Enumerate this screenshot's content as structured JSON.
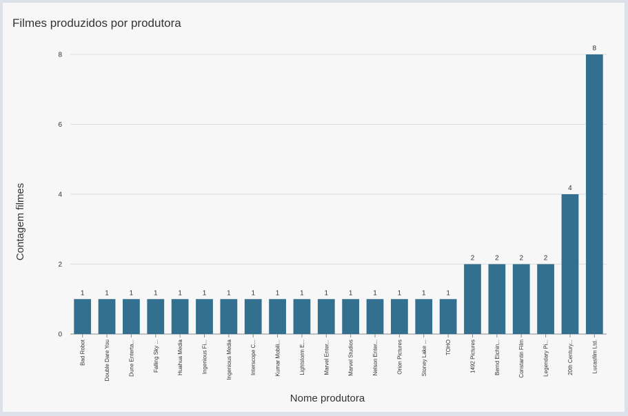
{
  "chart_data": {
    "type": "bar",
    "title": "Filmes produzidos por produtora",
    "xlabel": "Nome produtora",
    "ylabel": "Contagem filmes",
    "ylim": [
      0,
      8
    ],
    "yticks": [
      "0",
      "2",
      "4",
      "6",
      "8"
    ],
    "grid": true,
    "legend": "none",
    "bar_color": "#33708f",
    "categories": [
      "Bad Robot",
      "Double Dare You",
      "Dune Enterta...",
      "Falling Sky ...",
      "Huahua Media",
      "Ingenious Fi...",
      "Ingenious Media",
      "Interscope C...",
      "Kumar Mobili...",
      "Lightstorm E...",
      "Marvel Enter...",
      "Marvel Studios",
      "Nelson Enter...",
      "Orion Pictures",
      "Stoney Lake ...",
      "TOHO",
      "1492 Pictures",
      "Bernd Eichin...",
      "Constantin Film",
      "Legendary Pi...",
      "20th Century...",
      "Lucasfilm Ltd."
    ],
    "values": [
      1,
      1,
      1,
      1,
      1,
      1,
      1,
      1,
      1,
      1,
      1,
      1,
      1,
      1,
      1,
      1,
      2,
      2,
      2,
      2,
      4,
      8
    ]
  }
}
